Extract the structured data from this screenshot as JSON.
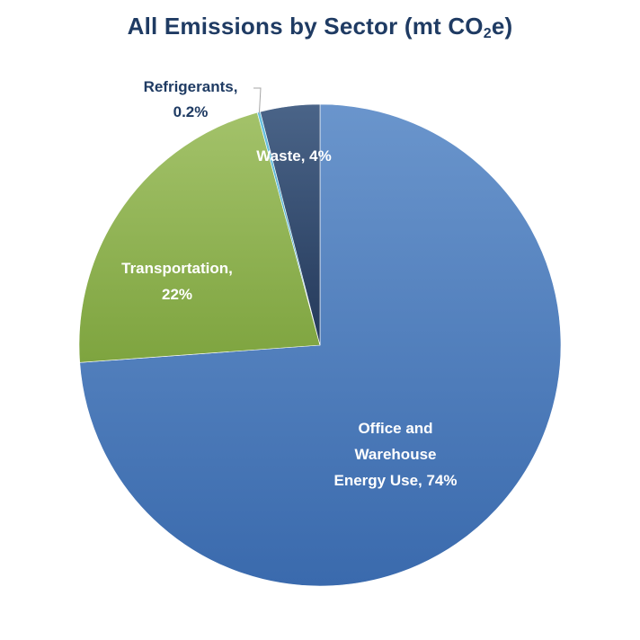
{
  "chart_data": {
    "type": "pie",
    "title": {
      "prefix": "All Emissions by Sector (mt CO",
      "subscript": "2",
      "suffix": "e)"
    },
    "slices": [
      {
        "name": "Office and Warehouse Energy Use",
        "value": 74,
        "label_lines": [
          "Office and",
          "Warehouse",
          "Energy Use, 74%"
        ],
        "color": "#4a7fc1",
        "color_light": "#6a95cc",
        "color_dark": "#3a6aad",
        "label_color": "#ffffff"
      },
      {
        "name": "Transportation",
        "value": 22,
        "label_lines": [
          "Transportation,",
          "22%"
        ],
        "color": "#8db24c",
        "color_light": "#a3c26a",
        "color_dark": "#7ea43f",
        "label_color": "#ffffff"
      },
      {
        "name": "Refrigerants",
        "value": 0.2,
        "label_lines": [
          "Refrigerants,",
          "0.2%"
        ],
        "color": "#4ab3d8",
        "color_light": "#6cc3e2",
        "color_dark": "#3a9fc4",
        "label_color": "#1f3b63"
      },
      {
        "name": "Waste",
        "value": 4,
        "label_lines": [
          "Waste, 4%"
        ],
        "color": "#2f4a6e",
        "color_light": "#4a6488",
        "color_dark": "#24395a",
        "label_color": "#ffffff"
      }
    ],
    "legend": "none",
    "start_angle_deg": 0,
    "direction": "clockwise"
  }
}
